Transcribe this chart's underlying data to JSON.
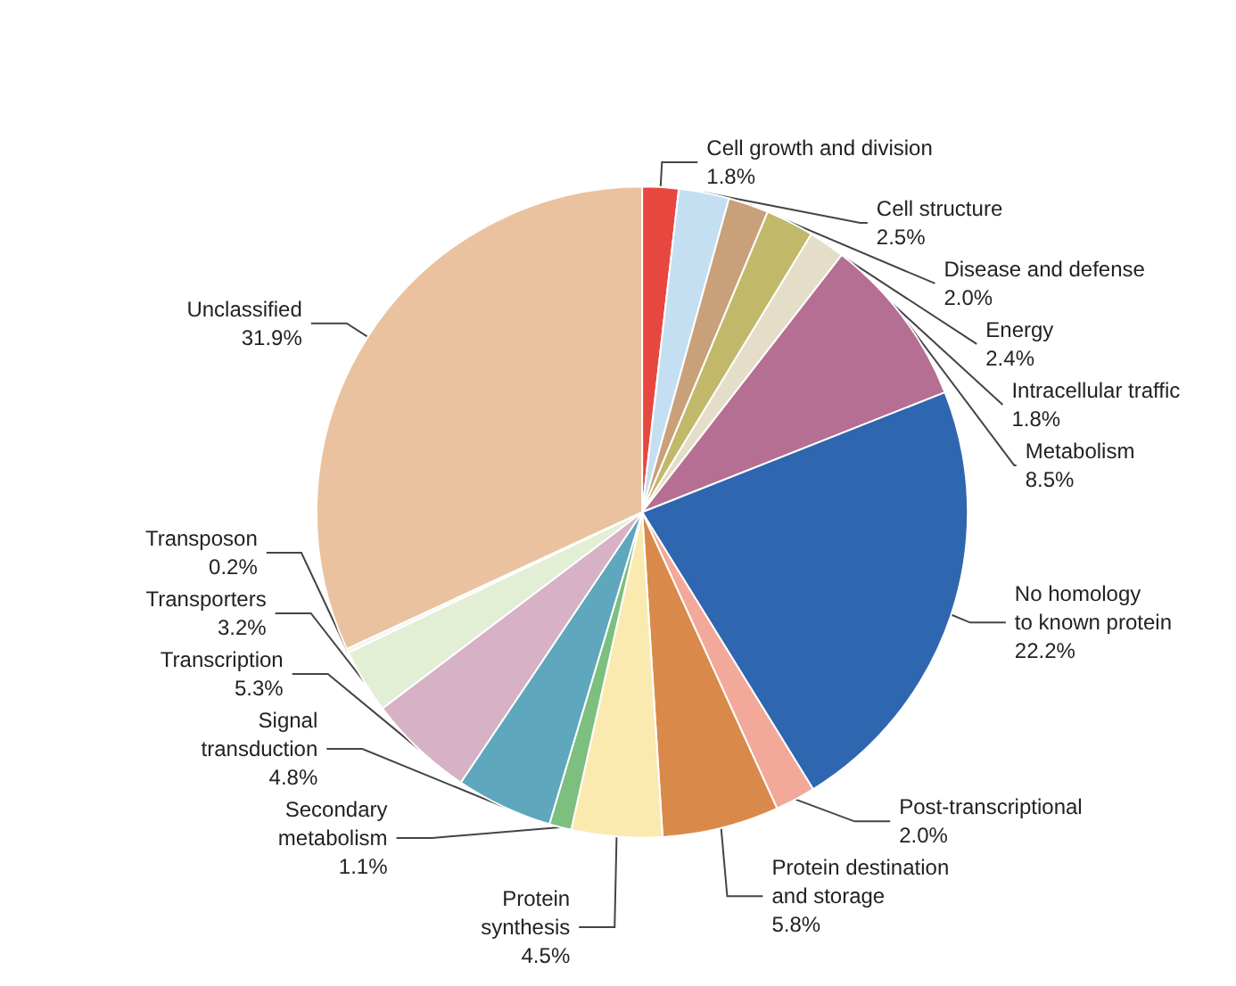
{
  "chart_data": {
    "type": "pie",
    "data_labels": true,
    "legend": false,
    "categories": [
      "Cell growth and division",
      "Cell structure",
      "Disease and defense",
      "Energy",
      "Intracellular traffic",
      "Metabolism",
      "No homology\nto known protein",
      "Post-transcriptional",
      "Protein destination\nand storage",
      "Protein\nsynthesis",
      "Secondary\nmetabolism",
      "Signal\ntransduction",
      "Transcription",
      "Transporters",
      "Transposon",
      "Unclassified"
    ],
    "values": [
      1.8,
      2.5,
      2.0,
      2.4,
      1.8,
      8.5,
      22.2,
      2.0,
      5.8,
      4.5,
      1.1,
      4.8,
      5.3,
      3.2,
      0.2,
      31.9
    ],
    "value_labels": [
      "1.8%",
      "2.5%",
      "2.0%",
      "2.4%",
      "1.8%",
      "8.5%",
      "22.2%",
      "2.0%",
      "5.8%",
      "4.5%",
      "1.1%",
      "4.8%",
      "5.3%",
      "3.2%",
      "0.2%",
      "31.9%"
    ],
    "colors": [
      "#e8473f",
      "#c5dff2",
      "#c8a07a",
      "#c2b86a",
      "#e4ddc8",
      "#b56f93",
      "#2f66b0",
      "#f2a99a",
      "#d98a4a",
      "#fbeab0",
      "#7cbf7f",
      "#5ea7bd",
      "#d7b1c6",
      "#e2efd4",
      "#f4f4f0",
      "#eac29f"
    ]
  }
}
